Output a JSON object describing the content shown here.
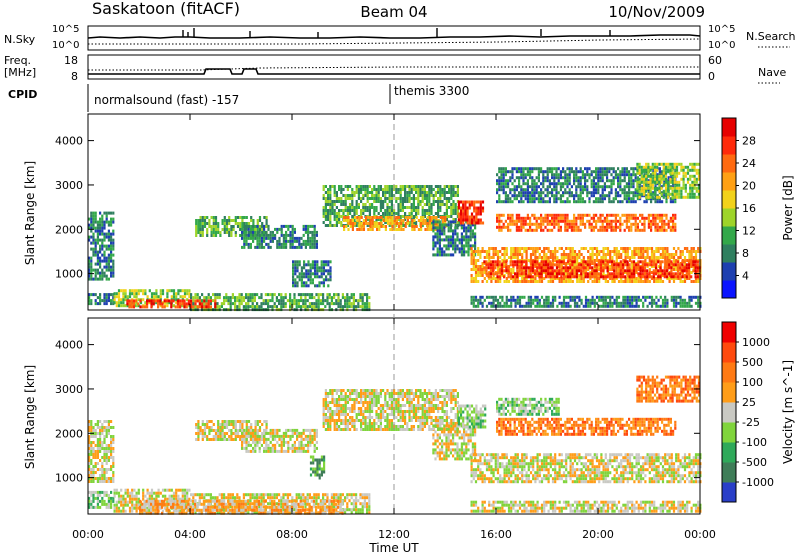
{
  "header": {
    "station": "Saskatoon (fitACF)",
    "beam": "Beam 04",
    "date": "10/Nov/2009"
  },
  "summary": {
    "nsky_label": "N.Sky",
    "freq_label_1": "Freq.",
    "freq_label_2": "[MHz]",
    "cpid_label": "CPID",
    "nsearch_label": "N.Search",
    "nave_label": "Nave",
    "nsky_ticks": [
      "10^5",
      "10^0"
    ],
    "nsearch_ticks": [
      "10^5",
      "10^0"
    ],
    "freq_ticks": [
      "18",
      "8"
    ],
    "nave_ticks": [
      "60",
      "0"
    ],
    "cpid_entries": [
      {
        "text": "normalsound (fast) -157",
        "start_hour": 0
      },
      {
        "text": "themis 3300",
        "start_hour": 12
      }
    ]
  },
  "colors": {
    "power": [
      "#0b14ff",
      "#1e40b0",
      "#2f7f5f",
      "#33a84a",
      "#9ed42a",
      "#f2d21b",
      "#ffa014",
      "#ff6a10",
      "#ff2a0a",
      "#e60000"
    ],
    "velocity": [
      "#2a3fc8",
      "#3f7d58",
      "#2fa95a",
      "#80d43c",
      "#c9c9c3",
      "#ff9d19",
      "#ff7a14",
      "#ff4a0e",
      "#f00000"
    ]
  },
  "chart_data": [
    {
      "type": "heatmap",
      "panel": "power",
      "xlabel": "",
      "ylabel": "Slant Range [km]",
      "xlim": [
        0,
        24
      ],
      "ylim": [
        180,
        4600
      ],
      "yticks": [
        "1000",
        "2000",
        "3000",
        "4000"
      ],
      "colorbar_label": "Power [dB]",
      "colorbar_ticks": [
        "4",
        "8",
        "12",
        "16",
        "20",
        "24",
        "28"
      ],
      "bands": [
        {
          "x": [
            0.0,
            1.0
          ],
          "y": [
            300,
            560
          ],
          "level": 2
        },
        {
          "x": [
            1.0,
            4.0
          ],
          "y": [
            250,
            650
          ],
          "level": 4
        },
        {
          "x": [
            4.0,
            11.0
          ],
          "y": [
            220,
            560
          ],
          "level": 3
        },
        {
          "x": [
            0.0,
            1.0
          ],
          "y": [
            900,
            2400
          ],
          "level": 2
        },
        {
          "x": [
            1.5,
            5.0
          ],
          "y": [
            250,
            420
          ],
          "level": 8
        },
        {
          "x": [
            4.2,
            7.0
          ],
          "y": [
            1850,
            2300
          ],
          "level": 3
        },
        {
          "x": [
            6.0,
            9.0
          ],
          "y": [
            1600,
            2100
          ],
          "level": 2
        },
        {
          "x": [
            8.0,
            9.5
          ],
          "y": [
            700,
            1300
          ],
          "level": 2
        },
        {
          "x": [
            9.2,
            14.5
          ],
          "y": [
            2100,
            3000
          ],
          "level": 3
        },
        {
          "x": [
            10.0,
            14.0
          ],
          "y": [
            2000,
            2300
          ],
          "level": 6
        },
        {
          "x": [
            13.5,
            15.2
          ],
          "y": [
            1400,
            2200
          ],
          "level": 2
        },
        {
          "x": [
            14.5,
            15.5
          ],
          "y": [
            2150,
            2650
          ],
          "level": 8
        },
        {
          "x": [
            15.0,
            24.0
          ],
          "y": [
            800,
            1600
          ],
          "level": 6
        },
        {
          "x": [
            15.5,
            24.0
          ],
          "y": [
            950,
            1300
          ],
          "level": 8
        },
        {
          "x": [
            16.0,
            23.0
          ],
          "y": [
            1950,
            2350
          ],
          "level": 7
        },
        {
          "x": [
            16.0,
            23.0
          ],
          "y": [
            2600,
            3400
          ],
          "level": 2
        },
        {
          "x": [
            21.5,
            24.0
          ],
          "y": [
            2700,
            3500
          ],
          "level": 4
        },
        {
          "x": [
            15.0,
            24.0
          ],
          "y": [
            250,
            500
          ],
          "level": 2
        }
      ]
    },
    {
      "type": "heatmap",
      "panel": "velocity",
      "xlabel": "Time UT",
      "ylabel": "Slant Range [km]",
      "xlim": [
        0,
        24
      ],
      "ylim": [
        180,
        4600
      ],
      "xticks": [
        "00:00",
        "04:00",
        "08:00",
        "12:00",
        "16:00",
        "20:00",
        "00:00"
      ],
      "yticks": [
        "1000",
        "2000",
        "3000",
        "4000"
      ],
      "colorbar_label": "Velocity [m s^-1]",
      "colorbar_ticks": [
        "1000",
        "500",
        "100",
        "25",
        "-25",
        "-100",
        "-500",
        "-1000"
      ],
      "bands": [
        {
          "x": [
            0.0,
            1.0
          ],
          "y": [
            300,
            700
          ],
          "level": 3
        },
        {
          "x": [
            1.0,
            4.0
          ],
          "y": [
            250,
            750
          ],
          "level": 4
        },
        {
          "x": [
            4.0,
            11.0
          ],
          "y": [
            220,
            650
          ],
          "level": 4
        },
        {
          "x": [
            2.0,
            10.0
          ],
          "y": [
            220,
            500
          ],
          "level": 5
        },
        {
          "x": [
            0.0,
            1.0
          ],
          "y": [
            900,
            2300
          ],
          "level": 4
        },
        {
          "x": [
            4.2,
            7.0
          ],
          "y": [
            1850,
            2300
          ],
          "level": 4
        },
        {
          "x": [
            6.0,
            9.0
          ],
          "y": [
            1600,
            2100
          ],
          "level": 4
        },
        {
          "x": [
            8.7,
            9.3
          ],
          "y": [
            1000,
            1500
          ],
          "level": 2
        },
        {
          "x": [
            9.2,
            14.5
          ],
          "y": [
            2100,
            3000
          ],
          "level": 4
        },
        {
          "x": [
            13.5,
            15.2
          ],
          "y": [
            1400,
            2200
          ],
          "level": 4
        },
        {
          "x": [
            14.5,
            15.6
          ],
          "y": [
            2150,
            2650
          ],
          "level": 3
        },
        {
          "x": [
            15.0,
            24.0
          ],
          "y": [
            900,
            1550
          ],
          "level": 4
        },
        {
          "x": [
            16.0,
            23.0
          ],
          "y": [
            1950,
            2350
          ],
          "level": 6
        },
        {
          "x": [
            16.0,
            18.5
          ],
          "y": [
            2400,
            2800
          ],
          "level": 3
        },
        {
          "x": [
            21.5,
            24.0
          ],
          "y": [
            2700,
            3300
          ],
          "level": 6
        },
        {
          "x": [
            15.0,
            24.0
          ],
          "y": [
            250,
            480
          ],
          "level": 4
        }
      ]
    }
  ]
}
